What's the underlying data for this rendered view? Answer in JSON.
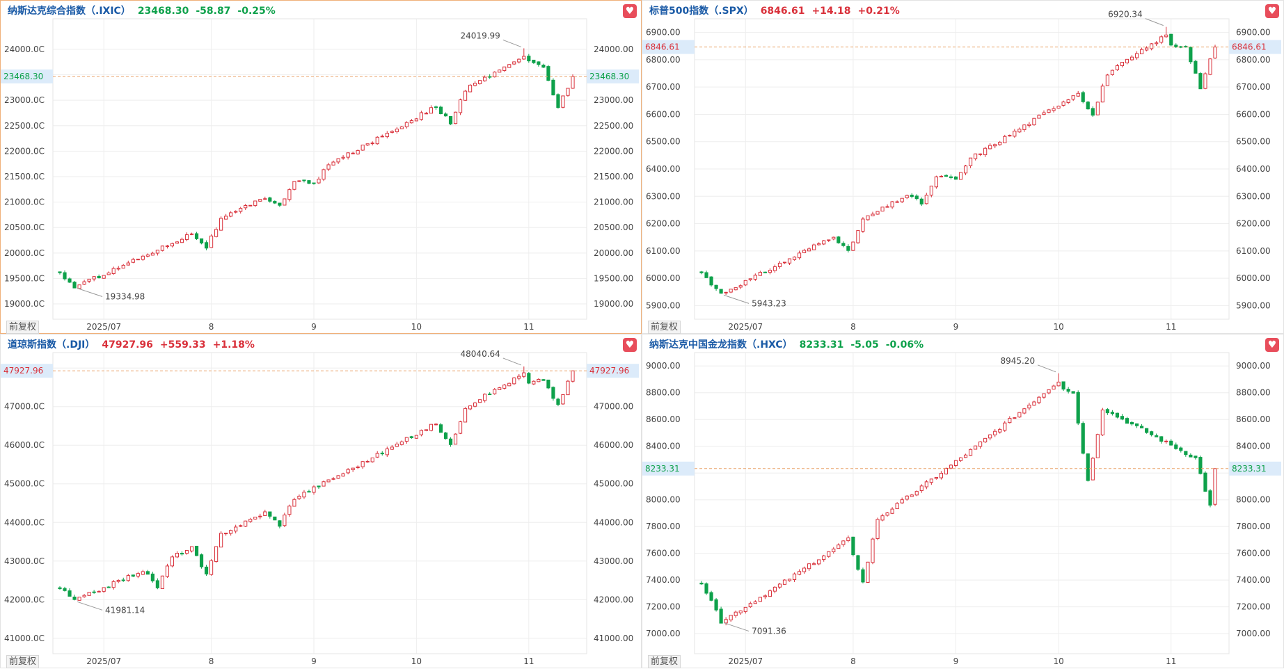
{
  "adj_label": "前复权",
  "colors": {
    "up": "#d9303a",
    "down": "#0ea14b",
    "name": "#1a5aa6",
    "refline": "#e9a46a"
  },
  "icons": {
    "favorite": "heart-icon"
  },
  "chart_data": [
    {
      "type": "candlestick",
      "name": "纳斯达克综合指数（.IXIC）",
      "price": "23468.30",
      "change": "-58.87",
      "pct": "-0.25%",
      "direction": "down",
      "active": true,
      "last": 23468.3,
      "last_label": "23468.30",
      "ylim": [
        18700,
        24600
      ],
      "yticks": [
        19000,
        19500,
        20000,
        20500,
        21000,
        21500,
        22000,
        22500,
        23000,
        23500,
        24000
      ],
      "ytick_labels": [
        "19000.00",
        "19500.00",
        "20000.00",
        "20500.00",
        "21000.00",
        "21500.00",
        "22000.00",
        "22500.00",
        "23000.00",
        "",
        "24000.00"
      ],
      "left_tick_labels": [
        "19000.0C",
        "19500.0C",
        "20000.0C",
        "20500.0C",
        "21000.0C",
        "21500.0C",
        "22000.0C",
        "22500.0C",
        "23000.0C",
        "",
        "24000.0C"
      ],
      "xticks": [
        {
          "index": 9,
          "label": "2025/07"
        },
        {
          "index": 31,
          "label": "8"
        },
        {
          "index": 52,
          "label": "9"
        },
        {
          "index": 73,
          "label": "10"
        },
        {
          "index": 96,
          "label": "11"
        }
      ],
      "high_label": "24019.99",
      "high_index": 95,
      "low_label": "19334.98",
      "low_index": 3,
      "start": 19600,
      "end": 23468.3,
      "peak": 24019.99,
      "peak_at": 95,
      "trough": 19334.98,
      "trough_at": 3,
      "dips": [
        {
          "at": 30,
          "depth": 400
        },
        {
          "at": 45,
          "depth": 300
        },
        {
          "at": 52,
          "depth": 250
        },
        {
          "at": 80,
          "depth": 500
        },
        {
          "at": 102,
          "depth": 700
        }
      ],
      "n": 106
    },
    {
      "type": "candlestick",
      "name": "标普500指数（.SPX）",
      "price": "6846.61",
      "change": "+14.18",
      "pct": "+0.21%",
      "direction": "up",
      "active": false,
      "last": 6846.61,
      "last_label": "6846.61",
      "ylim": [
        5850,
        6950
      ],
      "yticks": [
        5900,
        6000,
        6100,
        6200,
        6300,
        6400,
        6500,
        6600,
        6700,
        6800,
        6900
      ],
      "ytick_labels": [
        "5900.00",
        "6000.00",
        "6100.00",
        "6200.00",
        "6300.00",
        "6400.00",
        "6500.00",
        "6600.00",
        "6700.00",
        "6800.00",
        "6900.00"
      ],
      "left_tick_labels": [
        "5900.00",
        "6000.00",
        "6100.00",
        "6200.00",
        "6300.00",
        "6400.00",
        "6500.00",
        "6600.00",
        "6700.00",
        "6800.00",
        "6900.00"
      ],
      "xticks": [
        {
          "index": 9,
          "label": "2025/07"
        },
        {
          "index": 31,
          "label": "8"
        },
        {
          "index": 52,
          "label": "9"
        },
        {
          "index": 73,
          "label": "10"
        },
        {
          "index": 96,
          "label": "11"
        }
      ],
      "high_label": "6920.34",
      "high_index": 95,
      "low_label": "5943.23",
      "low_index": 4,
      "start": 6020,
      "end": 6846.61,
      "peak": 6920.34,
      "peak_at": 95,
      "trough": 5943.23,
      "trough_at": 4,
      "dips": [
        {
          "at": 30,
          "depth": 90
        },
        {
          "at": 45,
          "depth": 60
        },
        {
          "at": 52,
          "depth": 50
        },
        {
          "at": 80,
          "depth": 120
        },
        {
          "at": 102,
          "depth": 150
        }
      ],
      "n": 106
    },
    {
      "type": "candlestick",
      "name": "道琼斯指数（.DJI）",
      "price": "47927.96",
      "change": "+559.33",
      "pct": "+1.18%",
      "direction": "up",
      "active": false,
      "last": 47927.96,
      "last_label": "47927.96",
      "ylim": [
        40600,
        48400
      ],
      "yticks": [
        41000,
        42000,
        43000,
        44000,
        45000,
        46000,
        47000,
        48000
      ],
      "ytick_labels": [
        "41000.00",
        "42000.00",
        "43000.00",
        "44000.00",
        "45000.00",
        "46000.00",
        "47000.00",
        ""
      ],
      "left_tick_labels": [
        "41000.0C",
        "42000.0C",
        "43000.0C",
        "44000.0C",
        "45000.0C",
        "46000.0C",
        "47000.0C",
        ""
      ],
      "xticks": [
        {
          "index": 9,
          "label": "2025/07"
        },
        {
          "index": 31,
          "label": "8"
        },
        {
          "index": 52,
          "label": "9"
        },
        {
          "index": 73,
          "label": "10"
        },
        {
          "index": 96,
          "label": "11"
        }
      ],
      "high_label": "48040.64",
      "high_index": 95,
      "low_label": "41981.14",
      "low_index": 3,
      "start": 42300,
      "end": 47927.96,
      "peak": 48040.64,
      "peak_at": 95,
      "trough": 41981.14,
      "trough_at": 3,
      "dips": [
        {
          "at": 20,
          "depth": 600
        },
        {
          "at": 30,
          "depth": 900
        },
        {
          "at": 45,
          "depth": 500
        },
        {
          "at": 80,
          "depth": 800
        },
        {
          "at": 102,
          "depth": 800
        }
      ],
      "n": 106
    },
    {
      "type": "candlestick",
      "name": "纳斯达克中国金龙指数（.HXC）",
      "price": "8233.31",
      "change": "-5.05",
      "pct": "-0.06%",
      "direction": "down",
      "active": false,
      "last": 8233.31,
      "last_label": "8233.31",
      "ylim": [
        6850,
        9100
      ],
      "yticks": [
        7000,
        7200,
        7400,
        7600,
        7800,
        8000,
        8200,
        8400,
        8600,
        8800,
        9000
      ],
      "ytick_labels": [
        "7000.00",
        "7200.00",
        "7400.00",
        "7600.00",
        "7800.00",
        "8000.00",
        "",
        "8400.00",
        "8600.00",
        "8800.00",
        "9000.00"
      ],
      "left_tick_labels": [
        "7000.00",
        "7200.00",
        "7400.00",
        "7600.00",
        "7800.00",
        "8000.00",
        "",
        "8400.00",
        "8600.00",
        "8800.00",
        "9000.00"
      ],
      "xticks": [
        {
          "index": 9,
          "label": "2025/07"
        },
        {
          "index": 31,
          "label": "8"
        },
        {
          "index": 52,
          "label": "9"
        },
        {
          "index": 73,
          "label": "10"
        },
        {
          "index": 96,
          "label": "11"
        }
      ],
      "high_label": "8945.20",
      "high_index": 73,
      "low_label": "7091.36",
      "low_index": 4,
      "start": 7380,
      "end": 8233.31,
      "peak": 8945.2,
      "peak_at": 73,
      "trough": 7091.36,
      "trough_at": 4,
      "dips": [
        {
          "at": 33,
          "depth": 400
        },
        {
          "at": 79,
          "depth": 600
        },
        {
          "at": 104,
          "depth": 300
        }
      ],
      "n": 106
    }
  ]
}
